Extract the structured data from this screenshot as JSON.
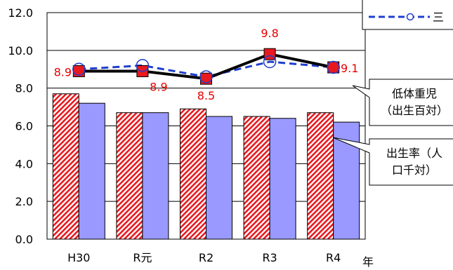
{
  "chart_data": {
    "type": "bar",
    "categories": [
      "H30",
      "R元",
      "R2",
      "R3",
      "R4"
    ],
    "x_unit_label": "年",
    "ylim": [
      0,
      12
    ],
    "yticks": [
      "0.0",
      "2.0",
      "4.0",
      "6.0",
      "8.0",
      "10.0",
      "12.0"
    ],
    "grid": true,
    "bar_series": [
      {
        "values": [
          7.7,
          6.7,
          6.9,
          6.5,
          6.7
        ],
        "color": "#e8191f",
        "pattern": "diagonal-hatch"
      },
      {
        "values": [
          7.2,
          6.7,
          6.5,
          6.4,
          6.2
        ],
        "color": "#9999ff"
      }
    ],
    "line_series": [
      {
        "values": [
          8.9,
          8.9,
          8.5,
          9.8,
          9.1
        ],
        "labels": [
          "8.9",
          "8.9",
          "8.5",
          "9.8",
          "9.1"
        ],
        "color": "#000000",
        "marker_color": "#e8191f",
        "marker": "square"
      },
      {
        "values": [
          9.0,
          9.2,
          8.6,
          9.4,
          9.1
        ],
        "color": "#1f3fd0",
        "marker": "circle",
        "dashed": true
      }
    ],
    "callouts": [
      {
        "lines": [
          "低体重児",
          "（出生百対）"
        ]
      },
      {
        "lines": [
          "出生率（人",
          "口千対）"
        ]
      }
    ],
    "legend": {
      "text": "三",
      "placement": "top-right"
    }
  }
}
